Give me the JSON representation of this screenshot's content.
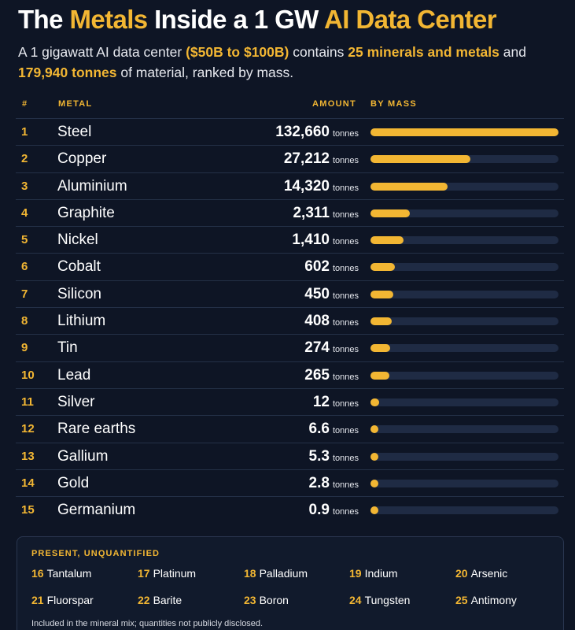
{
  "header": {
    "title_pre": "The ",
    "title_hl1": "Metals",
    "title_mid": " Inside a 1 GW ",
    "title_hl2": "AI Data Center",
    "sub_1": "A 1 gigawatt AI data center ",
    "sub_hl1": "($50B to $100B)",
    "sub_2": " contains ",
    "sub_hl2": "25 minerals and metals",
    "sub_3": " and ",
    "sub_hl3": "179,940 tonnes",
    "sub_4": " of material, ranked by mass."
  },
  "columns": {
    "rank": "#",
    "metal": "METAL",
    "amount": "AMOUNT",
    "bar": "BY MASS"
  },
  "unit": "tonnes",
  "chart_data": {
    "type": "bar",
    "orientation": "horizontal",
    "title": "The Metals Inside a 1 GW AI Data Center",
    "xlabel": "BY MASS",
    "ylabel": "METAL",
    "unit": "tonnes",
    "categories": [
      "Steel",
      "Copper",
      "Aluminium",
      "Graphite",
      "Nickel",
      "Cobalt",
      "Silicon",
      "Lithium",
      "Tin",
      "Lead",
      "Silver",
      "Rare earths",
      "Gallium",
      "Gold",
      "Germanium"
    ],
    "ranks": [
      "1",
      "2",
      "3",
      "4",
      "5",
      "6",
      "7",
      "8",
      "9",
      "10",
      "11",
      "12",
      "13",
      "14",
      "15"
    ],
    "amount_labels": [
      "132,660",
      "27,212",
      "14,320",
      "2,311",
      "1,410",
      "602",
      "450",
      "408",
      "274",
      "265",
      "12",
      "6.6",
      "5.3",
      "2.8",
      "0.9"
    ],
    "values": [
      132660,
      27212,
      14320,
      2311,
      1410,
      602,
      450,
      408,
      274,
      265,
      12,
      6.6,
      5.3,
      2.8,
      0.9
    ],
    "bar_fill_fraction": [
      1.0,
      0.53,
      0.41,
      0.21,
      0.175,
      0.13,
      0.12,
      0.115,
      0.105,
      0.1,
      0.045,
      0.04,
      0.04,
      0.035,
      0.03
    ],
    "bar_color": "#f2b633",
    "track_color": "#1f2b44"
  },
  "unquantified": {
    "title": "PRESENT, UNQUANTIFIED",
    "items": [
      {
        "num": "16",
        "name": "Tantalum"
      },
      {
        "num": "17",
        "name": "Platinum"
      },
      {
        "num": "18",
        "name": "Palladium"
      },
      {
        "num": "19",
        "name": "Indium"
      },
      {
        "num": "20",
        "name": "Arsenic"
      },
      {
        "num": "21",
        "name": "Fluorspar"
      },
      {
        "num": "22",
        "name": "Barite"
      },
      {
        "num": "23",
        "name": "Boron"
      },
      {
        "num": "24",
        "name": "Tungsten"
      },
      {
        "num": "25",
        "name": "Antimony"
      }
    ],
    "note": "Included in the mineral mix; quantities not publicly disclosed."
  },
  "colors": {
    "background": "#0e1525",
    "accent": "#f2b633",
    "text": "#ffffff"
  }
}
